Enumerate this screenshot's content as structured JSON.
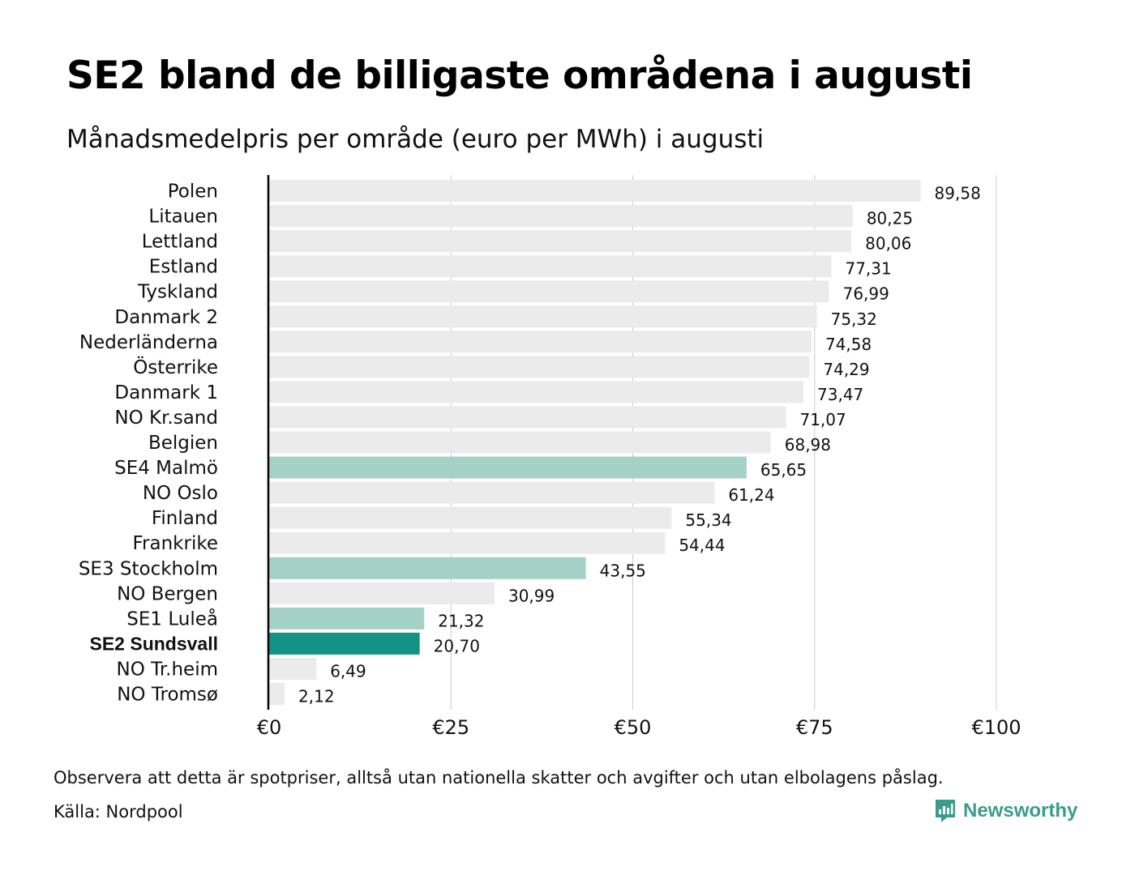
{
  "title": "SE2 bland de billigaste områdena i augusti",
  "subtitle": "Månadsmedelpris per område (euro per MWh) i augusti",
  "footnote": "Observera att detta är spotpriser, alltså utan nationella skatter och avgifter och utan elbolagens påslag.",
  "source": "Källa: Nordpool",
  "brand": {
    "name": "Newsworthy",
    "icon": "newsworthy-logo-icon"
  },
  "colors": {
    "default_bar": "#ebebeb",
    "se_bar": "#a5d0c8",
    "highlight_bar": "#139385",
    "grid": "#cccccc",
    "axis": "#000000",
    "brand": "#3a9c8d"
  },
  "chart_data": {
    "type": "bar",
    "orientation": "horizontal",
    "categories": [
      "Polen",
      "Litauen",
      "Lettland",
      "Estland",
      "Tyskland",
      "Danmark  2",
      "Nederländerna",
      "Österrike",
      "Danmark  1",
      "NO Kr.sand",
      "Belgien",
      "SE4  Malmö",
      "NO Oslo",
      "Finland",
      "Frankrike",
      "SE3  Stockholm",
      "NO Bergen",
      "SE1  Luleå",
      "SE2 Sundsvall",
      "NO Tr.heim",
      "NO Tromsø"
    ],
    "values": [
      89.58,
      80.25,
      80.06,
      77.31,
      76.99,
      75.32,
      74.58,
      74.29,
      73.47,
      71.07,
      68.98,
      65.65,
      61.24,
      55.34,
      54.44,
      43.55,
      30.99,
      21.32,
      20.7,
      6.49,
      2.12
    ],
    "value_labels": [
      "89,58",
      "80,25",
      "80,06",
      "77,31",
      "76,99",
      "75,32",
      "74,58",
      "74,29",
      "73,47",
      "71,07",
      "68,98",
      "65,65",
      "61,24",
      "55,34",
      "54,44",
      "43,55",
      "30,99",
      "21,32",
      "20,70",
      "6,49",
      "2,12"
    ],
    "bar_color_keys": [
      "default_bar",
      "default_bar",
      "default_bar",
      "default_bar",
      "default_bar",
      "default_bar",
      "default_bar",
      "default_bar",
      "default_bar",
      "default_bar",
      "default_bar",
      "se_bar",
      "default_bar",
      "default_bar",
      "default_bar",
      "se_bar",
      "default_bar",
      "se_bar",
      "highlight_bar",
      "default_bar",
      "default_bar"
    ],
    "highlight_category": "SE2 Sundsvall",
    "xlim": [
      0,
      100
    ],
    "x_ticks": [
      0,
      25,
      50,
      75,
      100
    ],
    "x_tick_labels": [
      "€0",
      "€25",
      "€50",
      "€75",
      "€100"
    ],
    "xlabel": "",
    "ylabel": "",
    "grid": "vertical"
  }
}
